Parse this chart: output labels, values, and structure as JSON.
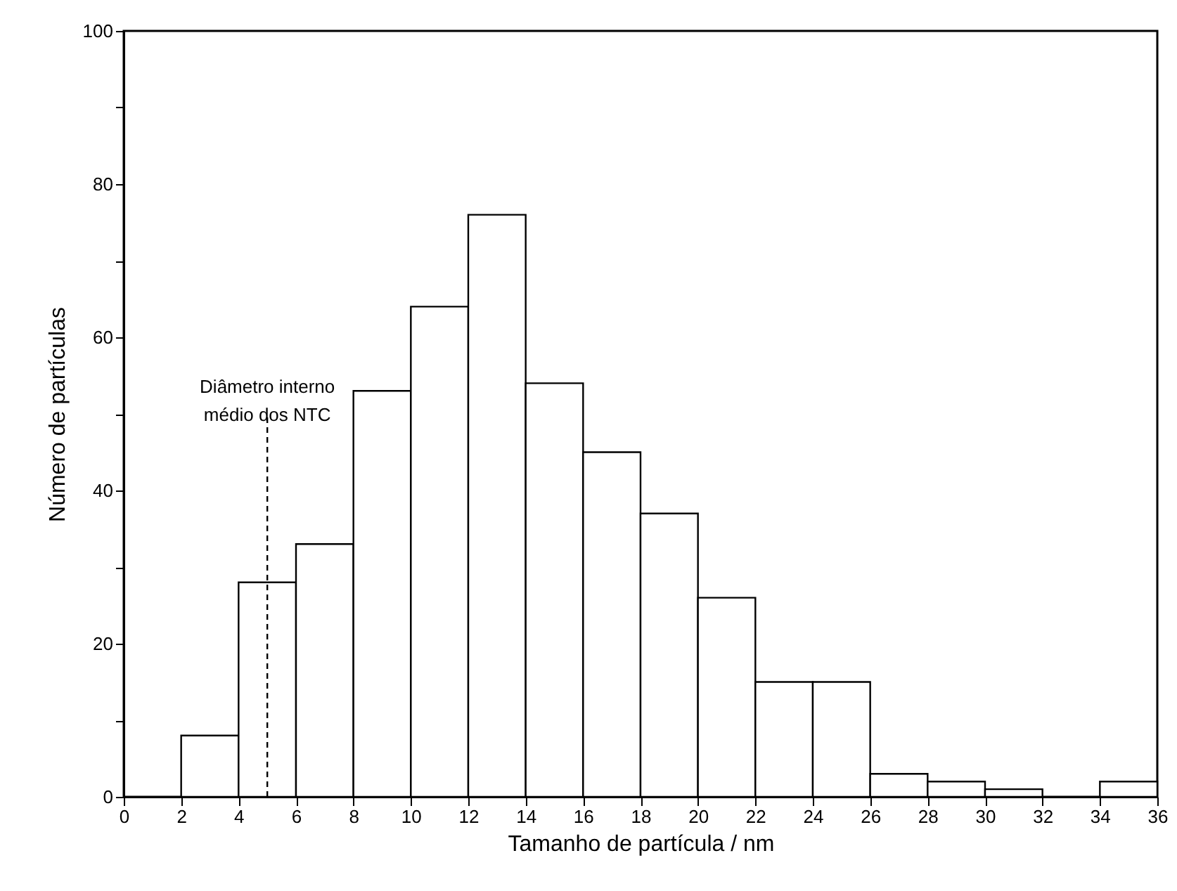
{
  "chart_data": {
    "type": "histogram",
    "xlabel": "Tamanho de partícula / nm",
    "ylabel": "Número de partículas",
    "bins": [
      2,
      4,
      6,
      8,
      10,
      12,
      14,
      16,
      18,
      20,
      22,
      24,
      26,
      28,
      30,
      32,
      34,
      36
    ],
    "values": [
      8,
      28,
      33,
      53,
      64,
      76,
      54,
      45,
      37,
      26,
      15,
      15,
      3,
      2,
      1,
      0,
      2
    ],
    "color": "#ffffff",
    "xlim": [
      0,
      36
    ],
    "xticks": [
      0,
      2,
      4,
      6,
      8,
      10,
      12,
      14,
      16,
      18,
      20,
      22,
      24,
      26,
      28,
      30,
      32,
      34,
      36
    ],
    "ylim": [
      0,
      100
    ],
    "yticks": [
      0,
      {
        "value": 10,
        "label": null
      },
      20,
      {
        "value": 30,
        "label": null
      },
      40,
      {
        "value": 50,
        "label": null
      },
      60,
      {
        "value": 70,
        "label": null
      },
      80,
      {
        "value": 90,
        "label": null
      },
      100
    ],
    "ref_lines": [
      {
        "axis": "x",
        "value": 5,
        "label": "Diâmetro interno\nmédio dos NTC",
        "line_style": "dashed",
        "color": "#000000"
      }
    ],
    "grid": false
  }
}
